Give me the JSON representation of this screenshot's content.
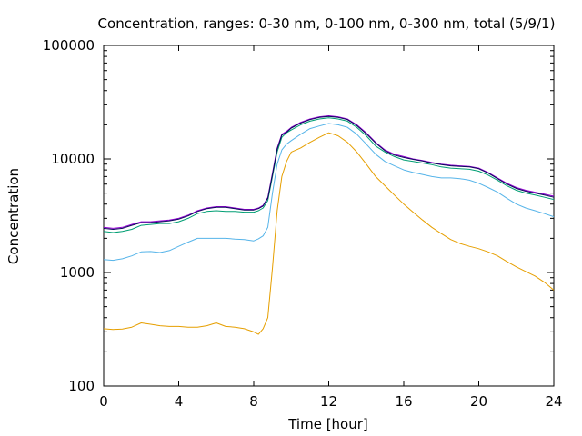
{
  "chart_data": {
    "type": "line",
    "title": "Concentration, ranges: 0-30 nm, 0-100 nm, 0-300 nm, total (5/9/1)",
    "xlabel": "Time [hour]",
    "ylabel": "Concentration",
    "xlim": [
      0,
      24
    ],
    "ylim": [
      100,
      100000
    ],
    "yscale": "log",
    "grid": false,
    "legend": "none",
    "x_ticks": [
      0,
      4,
      8,
      12,
      16,
      20,
      24
    ],
    "x_tick_labels": [
      "0",
      "4",
      "8",
      "12",
      "16",
      "20",
      "24"
    ],
    "y_ticks": [
      100,
      1000,
      10000,
      100000
    ],
    "y_tick_labels": [
      "100",
      "1000",
      "10000",
      "100000"
    ],
    "x": [
      0,
      0.5,
      1,
      1.5,
      2,
      2.5,
      3,
      3.5,
      4,
      4.5,
      5,
      5.5,
      6,
      6.5,
      7,
      7.5,
      8,
      8.25,
      8.5,
      8.75,
      9,
      9.25,
      9.5,
      9.75,
      10,
      10.5,
      11,
      11.5,
      12,
      12.5,
      13,
      13.5,
      14,
      14.5,
      15,
      15.5,
      16,
      16.5,
      17,
      17.5,
      18,
      18.5,
      19,
      19.5,
      20,
      20.5,
      21,
      21.5,
      22,
      22.5,
      23,
      23.5,
      24
    ],
    "series": [
      {
        "color": "#e69f00",
        "values": [
          320,
          315,
          318,
          330,
          360,
          350,
          340,
          335,
          335,
          330,
          330,
          340,
          360,
          335,
          330,
          320,
          300,
          285,
          320,
          400,
          1100,
          3500,
          7000,
          9500,
          11500,
          12500,
          14000,
          15500,
          17000,
          16000,
          14000,
          11500,
          9000,
          7000,
          5800,
          4800,
          4000,
          3400,
          2900,
          2500,
          2200,
          1950,
          1800,
          1700,
          1620,
          1520,
          1400,
          1250,
          1120,
          1020,
          930,
          820,
          700
        ]
      },
      {
        "color": "#56b4e9",
        "values": [
          1300,
          1280,
          1320,
          1400,
          1520,
          1530,
          1500,
          1560,
          1700,
          1850,
          2000,
          2000,
          2000,
          2000,
          1970,
          1950,
          1900,
          1980,
          2100,
          2500,
          5000,
          9000,
          12000,
          13500,
          14500,
          16500,
          18500,
          19500,
          20500,
          20000,
          19000,
          16500,
          13500,
          11000,
          9500,
          8700,
          8000,
          7600,
          7300,
          7000,
          6800,
          6800,
          6700,
          6500,
          6100,
          5600,
          5100,
          4500,
          4000,
          3700,
          3500,
          3300,
          3100
        ]
      },
      {
        "color": "#009e73",
        "values": [
          2300,
          2250,
          2300,
          2400,
          2600,
          2650,
          2700,
          2700,
          2800,
          3000,
          3300,
          3450,
          3500,
          3450,
          3450,
          3400,
          3400,
          3500,
          3700,
          4300,
          7000,
          11500,
          15500,
          17000,
          18000,
          20000,
          21500,
          22500,
          23000,
          22500,
          21500,
          19000,
          16000,
          13000,
          11500,
          10500,
          9800,
          9500,
          9200,
          8900,
          8500,
          8300,
          8200,
          8100,
          7800,
          7200,
          6500,
          5800,
          5300,
          5000,
          4800,
          4600,
          4400
        ]
      },
      {
        "color": "#9400d3",
        "values": [
          2500,
          2450,
          2500,
          2650,
          2800,
          2800,
          2850,
          2900,
          3000,
          3200,
          3500,
          3700,
          3800,
          3800,
          3700,
          3600,
          3600,
          3700,
          3900,
          4600,
          7500,
          12500,
          16500,
          17500,
          19000,
          21000,
          22500,
          23500,
          24000,
          23500,
          22500,
          20000,
          17000,
          14000,
          12000,
          11000,
          10500,
          10000,
          9700,
          9300,
          9000,
          8800,
          8700,
          8600,
          8300,
          7600,
          6800,
          6100,
          5600,
          5300,
          5100,
          4900,
          4700
        ]
      },
      {
        "color": "#0a0a5a",
        "values": [
          2450,
          2400,
          2450,
          2600,
          2750,
          2750,
          2800,
          2850,
          2950,
          3150,
          3450,
          3650,
          3750,
          3750,
          3650,
          3550,
          3550,
          3650,
          3850,
          4500,
          7300,
          12200,
          16200,
          17200,
          18700,
          20700,
          22200,
          23200,
          23700,
          23200,
          22200,
          19700,
          16700,
          13800,
          11800,
          10800,
          10300,
          9900,
          9600,
          9200,
          8900,
          8700,
          8600,
          8500,
          8200,
          7500,
          6700,
          6000,
          5500,
          5200,
          5000,
          4800,
          4600
        ]
      }
    ]
  }
}
